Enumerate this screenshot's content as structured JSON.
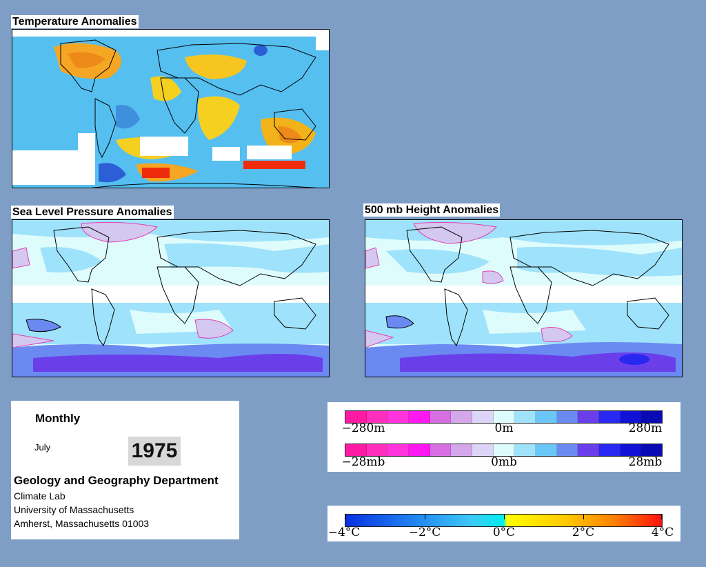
{
  "panels": {
    "temperature": {
      "title": "Temperature Anomalies"
    },
    "slp": {
      "title": "Sea Level Pressure Anomalies"
    },
    "height500": {
      "title": "500 mb Height Anomalies"
    }
  },
  "info": {
    "period": "Monthly",
    "month": "July",
    "year": "1975",
    "department": "Geology and Geography Department",
    "lines": [
      "Climate Lab",
      "University of Massachusetts",
      "Amherst, Massachusetts 01003"
    ]
  },
  "legends": {
    "height": {
      "labels": [
        "−280m",
        "0m",
        "280m"
      ],
      "colors": [
        "#ff1aa3",
        "#ff2fbd",
        "#ff34dc",
        "#ff18f0",
        "#d76fe3",
        "#d4a6ea",
        "#dcd5f7",
        "#dffcfc",
        "#9fe2fb",
        "#6ac6f7",
        "#6a8af2",
        "#6a3fea",
        "#2828f0",
        "#1212d6",
        "#0a0ab4"
      ]
    },
    "pressure": {
      "labels": [
        "−28mb",
        "0mb",
        "28mb"
      ],
      "colors": [
        "#ff1aa3",
        "#ff2fbd",
        "#ff34dc",
        "#ff18f0",
        "#d76fe3",
        "#d4a6ea",
        "#dcd5f7",
        "#dffcfc",
        "#9fe2fb",
        "#6ac6f7",
        "#6a8af2",
        "#6a3fea",
        "#2828f0",
        "#1212d6",
        "#0a0ab4"
      ]
    },
    "temperature": {
      "labels": [
        "−4°C",
        "−2°C",
        "0°C",
        "2°C",
        "4°C"
      ]
    }
  }
}
